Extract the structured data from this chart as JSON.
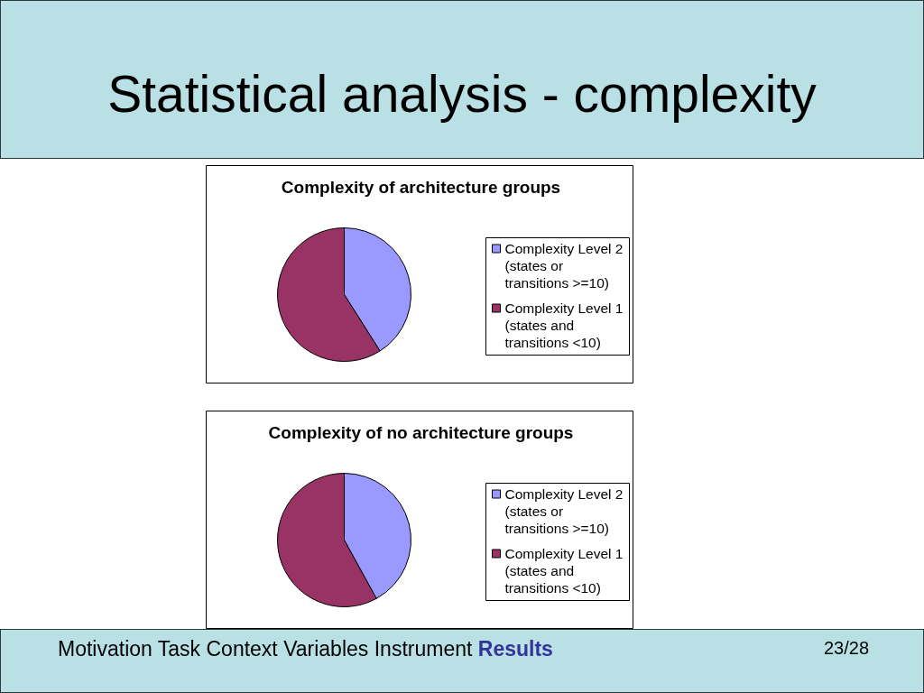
{
  "chart_data": [
    {
      "type": "other",
      "title": "Statistical analysis - complexity"
    },
    {
      "type": "pie",
      "title": "Complexity of architecture groups",
      "categories": [
        "Complexity Level 2 (states or transitions >=10)",
        "Complexity Level 1 (states and transitions <10)"
      ],
      "values": [
        41,
        59
      ],
      "colors": [
        "#9999ff",
        "#993366"
      ],
      "legend": "right"
    },
    {
      "type": "pie",
      "title": "Complexity of no architecture groups",
      "categories": [
        "Complexity Level 2 (states or transitions >=10)",
        "Complexity Level 1 (states and transitions <10)"
      ],
      "values": [
        42,
        58
      ],
      "colors": [
        "#9999ff",
        "#993366"
      ],
      "legend": "right"
    },
    {
      "type": "other",
      "annotations": [
        "Motivation Task Context Variables Instrument",
        "Results",
        "23/28"
      ]
    }
  ]
}
